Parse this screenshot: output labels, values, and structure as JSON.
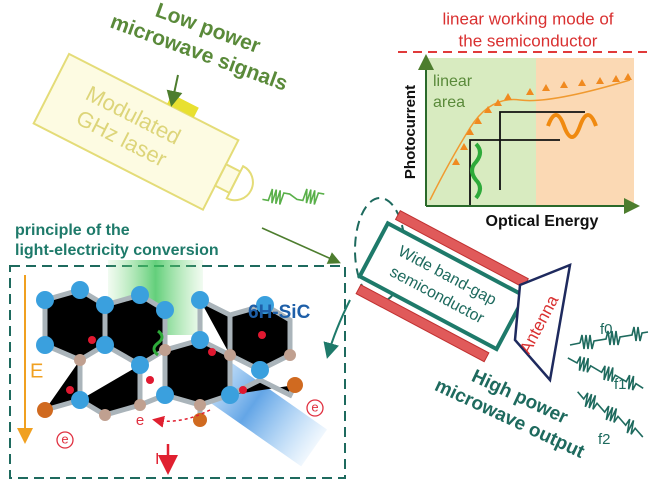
{
  "laser": {
    "signal_label": [
      "Low power",
      "microwave signals"
    ],
    "label": [
      "Modulated",
      "GHz laser"
    ]
  },
  "inset": {
    "title": [
      "linear working mode of",
      "the semiconductor"
    ],
    "region_label": [
      "linear",
      "area"
    ],
    "y_label": "Photocurrent",
    "x_label": "Optical Energy"
  },
  "principle": {
    "title": [
      "principle of the",
      "light-electricity conversion"
    ],
    "material": "6H-SiC",
    "field_label": "E",
    "electron_labels": [
      "e",
      "e",
      "e"
    ],
    "current_label": "I"
  },
  "semiconductor": {
    "label": [
      "Wide band-gap",
      "semiconductor"
    ]
  },
  "antenna": {
    "label": "Antenna"
  },
  "output": {
    "label": [
      "High power",
      "microwave output"
    ],
    "frequencies": [
      "f0",
      "f1",
      "f2"
    ]
  }
}
